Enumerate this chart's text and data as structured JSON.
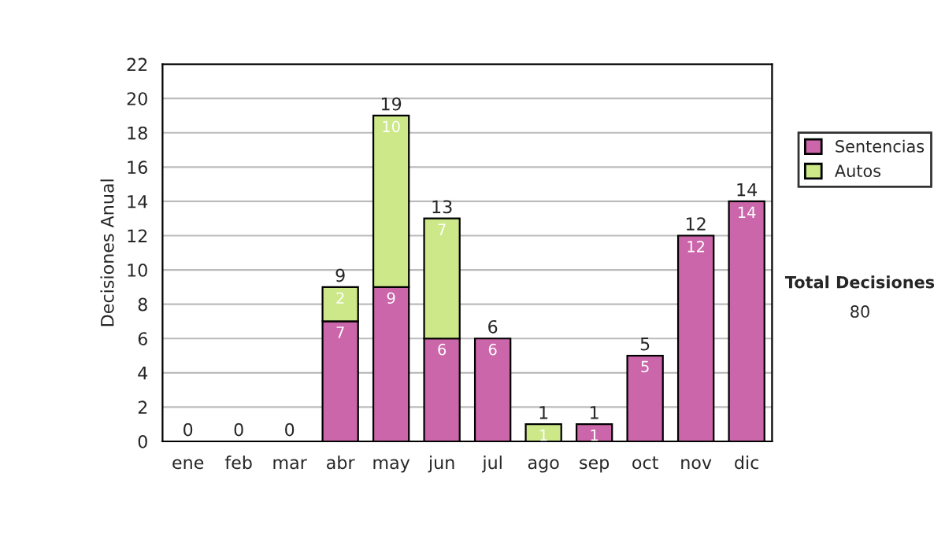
{
  "chart_data": {
    "type": "bar",
    "stacked": true,
    "ylabel": "Decisiones Anual",
    "categories": [
      "ene",
      "feb",
      "mar",
      "abr",
      "may",
      "jun",
      "jul",
      "ago",
      "sep",
      "oct",
      "nov",
      "dic"
    ],
    "series": [
      {
        "name": "Sentencias",
        "color": "#cc66aa",
        "values": [
          0,
          0,
          0,
          7,
          9,
          6,
          6,
          0,
          1,
          5,
          12,
          14
        ],
        "value_labels": [
          null,
          null,
          null,
          "7",
          "9",
          "6",
          "6",
          null,
          "1",
          "5",
          "12",
          "14"
        ]
      },
      {
        "name": "Autos",
        "color": "#cce888",
        "values": [
          0,
          0,
          0,
          2,
          10,
          7,
          0,
          1,
          0,
          0,
          0,
          0
        ],
        "value_labels": [
          null,
          null,
          null,
          "2",
          "10",
          "7",
          null,
          "1",
          null,
          null,
          null,
          null
        ]
      }
    ],
    "totals": [
      "0",
      "0",
      "0",
      "9",
      "19",
      "13",
      "6",
      "1",
      "1",
      "5",
      "12",
      "14"
    ],
    "ylim": [
      0,
      22
    ],
    "yticks": [
      0,
      2,
      4,
      6,
      8,
      10,
      12,
      14,
      16,
      18,
      20,
      22
    ],
    "grid": "y",
    "legend": "right",
    "annotations": [
      "Total Decisiones",
      "80"
    ]
  }
}
